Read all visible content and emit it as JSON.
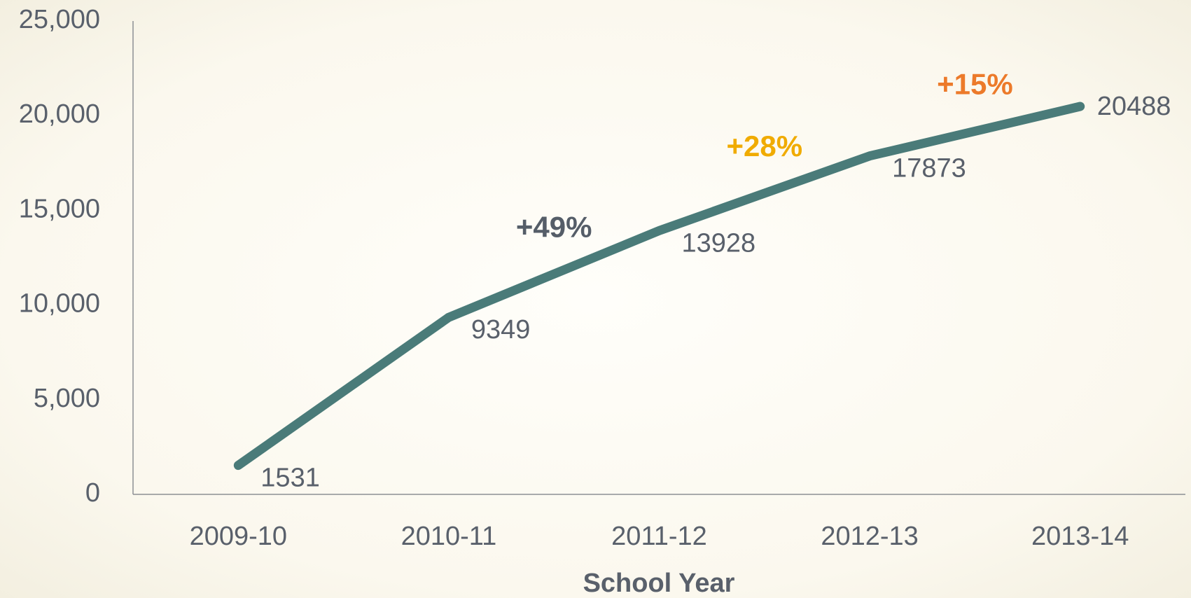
{
  "chart_data": {
    "type": "line",
    "x_label": "School Year",
    "categories": [
      "2009-10",
      "2010-11",
      "2011-12",
      "2012-13",
      "2013-14"
    ],
    "values": [
      1531,
      9349,
      13928,
      17873,
      20488
    ],
    "color": "#4a7b79",
    "ylim": [
      0,
      25000
    ],
    "yticks": [
      0,
      {
        "value": 5000,
        "label": "5,000"
      },
      {
        "value": 10000,
        "label": "10,000"
      },
      {
        "value": 15000,
        "label": "15,000"
      },
      {
        "value": 20000,
        "label": "20,000"
      },
      {
        "value": 25000,
        "label": "25,000"
      }
    ],
    "grid": false,
    "annotations": [
      {
        "text": "+49%",
        "color": "#555d68"
      },
      {
        "text": "+28%",
        "color": "#f0ab00"
      },
      {
        "text": "+15%",
        "color": "#ec7a2a"
      }
    ]
  }
}
